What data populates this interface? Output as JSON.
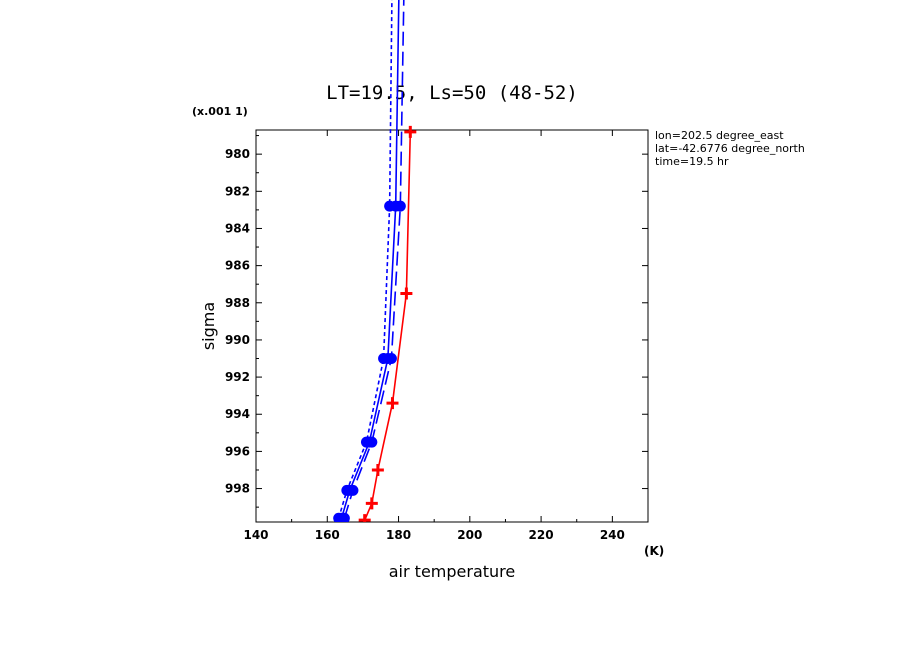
{
  "chart_data": {
    "type": "line",
    "title": "LT=19.5, Ls=50 (48-52)",
    "xlabel": "air temperature",
    "ylabel": "sigma",
    "x_unit": "(K)",
    "y_scale_note": "(x.001 1)",
    "xlim": [
      140,
      250
    ],
    "ylim": [
      999.8,
      978.7
    ],
    "x_ticks": [
      140,
      160,
      180,
      200,
      220,
      240
    ],
    "y_ticks": [
      980,
      982,
      984,
      986,
      988,
      990,
      992,
      994,
      996,
      998
    ],
    "info_lines": [
      "lon=202.5 degree_east",
      "lat=-42.6776 degree_north",
      "time=19.5 hr"
    ],
    "series": [
      {
        "color": "#ff0000",
        "dash": "solid",
        "marker": "plus",
        "points": [
          [
            170.5,
            999.7
          ],
          [
            172.5,
            998.8
          ],
          [
            174.2,
            997.0
          ],
          [
            178.3,
            993.4
          ],
          [
            182.2,
            987.5
          ],
          [
            183.3,
            978.8
          ]
        ]
      },
      {
        "color": "#0000ff",
        "dash": "solid",
        "marker": "dot",
        "points": [
          [
            164.0,
            999.6
          ],
          [
            166.3,
            998.1
          ],
          [
            171.8,
            995.5
          ],
          [
            177.0,
            991.0
          ],
          [
            179.2,
            982.8
          ],
          [
            181.0,
            960.0
          ]
        ]
      },
      {
        "color": "#0000ff",
        "dash": "long",
        "marker": "dot",
        "points": [
          [
            164.8,
            999.6
          ],
          [
            167.2,
            998.1
          ],
          [
            172.5,
            995.5
          ],
          [
            178.0,
            991.0
          ],
          [
            180.5,
            982.8
          ],
          [
            182.5,
            960.0
          ]
        ]
      },
      {
        "color": "#0000ff",
        "dash": "short",
        "marker": "dot",
        "points": [
          [
            163.2,
            999.6
          ],
          [
            165.5,
            998.1
          ],
          [
            171.0,
            995.5
          ],
          [
            175.8,
            991.0
          ],
          [
            177.5,
            982.8
          ],
          [
            178.8,
            960.0
          ]
        ]
      }
    ]
  }
}
